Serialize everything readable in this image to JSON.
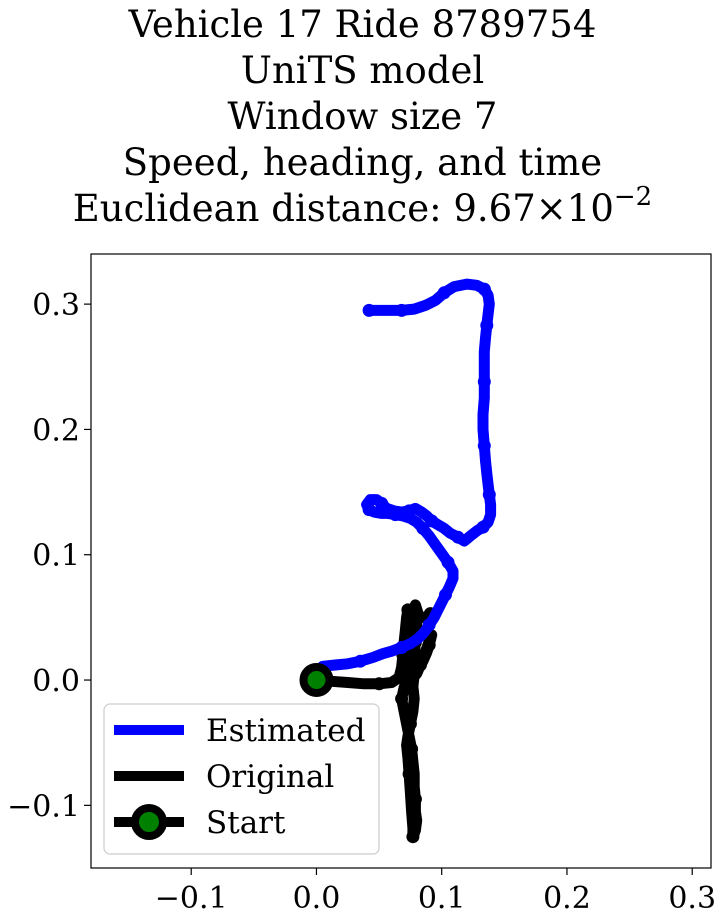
{
  "chart_data": {
    "type": "line",
    "title_lines": [
      "Vehicle 17 Ride 8789754",
      "UniTS model",
      "Window size 7",
      "Speed, heading, and time"
    ],
    "title_metric_label": "Euclidean distance: ",
    "title_metric_mantissa": "9.67",
    "title_metric_times": "×",
    "title_metric_base": "10",
    "title_metric_exponent": "−2",
    "xlim": [
      -0.18,
      0.315
    ],
    "ylim": [
      -0.15,
      0.34
    ],
    "x_ticks": [
      {
        "value": -0.1,
        "label": "−0.1"
      },
      {
        "value": 0.0,
        "label": "0.0"
      },
      {
        "value": 0.1,
        "label": "0.1"
      },
      {
        "value": 0.2,
        "label": "0.2"
      },
      {
        "value": 0.3,
        "label": "0.3"
      }
    ],
    "y_ticks": [
      {
        "value": 0.3,
        "label": "0.3"
      },
      {
        "value": 0.2,
        "label": "0.2"
      },
      {
        "value": 0.1,
        "label": "0.1"
      },
      {
        "value": 0.0,
        "label": "0.0"
      },
      {
        "value": -0.1,
        "label": "−0.1"
      }
    ],
    "grid": false,
    "legend_position": "lower-left",
    "series": [
      {
        "name": "Estimated",
        "color": "#0000ff",
        "points": [
          [
            0.0,
            0.0
          ],
          [
            0.005,
            0.011
          ],
          [
            0.015,
            0.012
          ],
          [
            0.025,
            0.013
          ],
          [
            0.035,
            0.015
          ],
          [
            0.045,
            0.018
          ],
          [
            0.053,
            0.021
          ],
          [
            0.06,
            0.023
          ],
          [
            0.068,
            0.026
          ],
          [
            0.075,
            0.029
          ],
          [
            0.081,
            0.033
          ],
          [
            0.086,
            0.038
          ],
          [
            0.09,
            0.044
          ],
          [
            0.094,
            0.05
          ],
          [
            0.097,
            0.056
          ],
          [
            0.1,
            0.062
          ],
          [
            0.103,
            0.068
          ],
          [
            0.106,
            0.074
          ],
          [
            0.109,
            0.081
          ],
          [
            0.109,
            0.087
          ],
          [
            0.105,
            0.094
          ],
          [
            0.1,
            0.101
          ],
          [
            0.095,
            0.108
          ],
          [
            0.09,
            0.115
          ],
          [
            0.085,
            0.121
          ],
          [
            0.08,
            0.126
          ],
          [
            0.075,
            0.129
          ],
          [
            0.069,
            0.131
          ],
          [
            0.063,
            0.132
          ],
          [
            0.057,
            0.133
          ],
          [
            0.052,
            0.133
          ],
          [
            0.046,
            0.134
          ],
          [
            0.042,
            0.136
          ],
          [
            0.04,
            0.14
          ],
          [
            0.043,
            0.144
          ],
          [
            0.048,
            0.144
          ],
          [
            0.052,
            0.141
          ],
          [
            0.056,
            0.137
          ],
          [
            0.062,
            0.135
          ],
          [
            0.068,
            0.134
          ],
          [
            0.074,
            0.135
          ],
          [
            0.079,
            0.137
          ],
          [
            0.084,
            0.134
          ],
          [
            0.088,
            0.131
          ],
          [
            0.092,
            0.127
          ],
          [
            0.097,
            0.124
          ],
          [
            0.102,
            0.121
          ],
          [
            0.107,
            0.117
          ],
          [
            0.113,
            0.114
          ],
          [
            0.118,
            0.111
          ],
          [
            0.123,
            0.115
          ],
          [
            0.128,
            0.119
          ],
          [
            0.133,
            0.122
          ],
          [
            0.137,
            0.126
          ],
          [
            0.139,
            0.132
          ],
          [
            0.139,
            0.14
          ],
          [
            0.138,
            0.148
          ],
          [
            0.137,
            0.156
          ],
          [
            0.136,
            0.165
          ],
          [
            0.135,
            0.175
          ],
          [
            0.134,
            0.187
          ],
          [
            0.133,
            0.2
          ],
          [
            0.133,
            0.212
          ],
          [
            0.134,
            0.225
          ],
          [
            0.134,
            0.238
          ],
          [
            0.134,
            0.25
          ],
          [
            0.134,
            0.262
          ],
          [
            0.135,
            0.273
          ],
          [
            0.136,
            0.283
          ],
          [
            0.137,
            0.292
          ],
          [
            0.138,
            0.3
          ],
          [
            0.137,
            0.307
          ],
          [
            0.134,
            0.312
          ],
          [
            0.128,
            0.315
          ],
          [
            0.12,
            0.316
          ],
          [
            0.11,
            0.314
          ],
          [
            0.102,
            0.309
          ],
          [
            0.095,
            0.303
          ],
          [
            0.087,
            0.299
          ],
          [
            0.078,
            0.296
          ],
          [
            0.068,
            0.295
          ],
          [
            0.058,
            0.295
          ],
          [
            0.05,
            0.295
          ],
          [
            0.042,
            0.295
          ]
        ]
      },
      {
        "name": "Original",
        "color": "#000000",
        "points": [
          [
            0.0,
            0.0
          ],
          [
            0.012,
            -0.001
          ],
          [
            0.025,
            -0.002
          ],
          [
            0.038,
            -0.003
          ],
          [
            0.05,
            -0.003
          ],
          [
            0.06,
            -0.002
          ],
          [
            0.066,
            0.002
          ],
          [
            0.068,
            0.01
          ],
          [
            0.069,
            0.02
          ],
          [
            0.07,
            0.03
          ],
          [
            0.071,
            0.04
          ],
          [
            0.072,
            0.05
          ],
          [
            0.073,
            0.056
          ],
          [
            0.076,
            0.05
          ],
          [
            0.078,
            0.04
          ],
          [
            0.078,
            0.03
          ],
          [
            0.077,
            0.02
          ],
          [
            0.075,
            0.01
          ],
          [
            0.073,
            0.002
          ],
          [
            0.07,
            -0.006
          ],
          [
            0.068,
            -0.015
          ],
          [
            0.07,
            -0.025
          ],
          [
            0.072,
            -0.035
          ],
          [
            0.074,
            -0.045
          ],
          [
            0.076,
            -0.055
          ],
          [
            0.077,
            -0.065
          ],
          [
            0.078,
            -0.075
          ],
          [
            0.078,
            -0.085
          ],
          [
            0.079,
            -0.095
          ],
          [
            0.079,
            -0.105
          ],
          [
            0.08,
            -0.112
          ],
          [
            0.079,
            -0.12
          ],
          [
            0.077,
            -0.125
          ],
          [
            0.077,
            -0.118
          ],
          [
            0.076,
            -0.105
          ],
          [
            0.075,
            -0.09
          ],
          [
            0.074,
            -0.075
          ],
          [
            0.073,
            -0.062
          ],
          [
            0.072,
            -0.052
          ],
          [
            0.073,
            -0.045
          ],
          [
            0.075,
            -0.035
          ],
          [
            0.077,
            -0.025
          ],
          [
            0.078,
            -0.015
          ],
          [
            0.077,
            -0.005
          ],
          [
            0.078,
            0.004
          ],
          [
            0.081,
            0.008
          ],
          [
            0.085,
            0.015
          ],
          [
            0.088,
            0.022
          ],
          [
            0.09,
            0.028
          ],
          [
            0.092,
            0.036
          ],
          [
            0.089,
            0.028
          ],
          [
            0.086,
            0.02
          ],
          [
            0.083,
            0.012
          ],
          [
            0.08,
            0.005
          ],
          [
            0.077,
            0.01
          ],
          [
            0.078,
            0.02
          ],
          [
            0.079,
            0.03
          ],
          [
            0.08,
            0.04
          ],
          [
            0.08,
            0.05
          ],
          [
            0.079,
            0.06
          ],
          [
            0.082,
            0.05
          ],
          [
            0.087,
            0.05
          ],
          [
            0.091,
            0.053
          ]
        ]
      },
      {
        "name": "Start",
        "color": "#000000",
        "marker_face_color": "#008000",
        "points": [
          [
            0.0,
            0.0
          ]
        ]
      }
    ]
  }
}
